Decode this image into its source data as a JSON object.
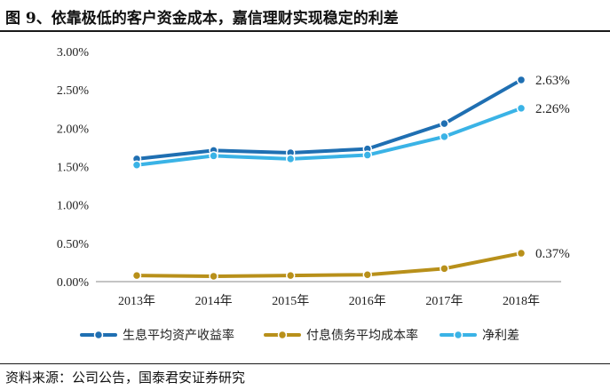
{
  "header": {
    "title": "图 9、依靠极低的客户资金成本，嘉信理财实现稳定的利差"
  },
  "footer": {
    "source": "资料来源：公司公告，国泰君安证券研究"
  },
  "chart_data": {
    "type": "line",
    "categories": [
      "2013年",
      "2014年",
      "2015年",
      "2016年",
      "2017年",
      "2018年"
    ],
    "ylim": [
      0,
      3.0
    ],
    "yticks": [
      "0.00%",
      "0.50%",
      "1.00%",
      "1.50%",
      "2.00%",
      "2.50%",
      "3.00%"
    ],
    "ytick_values": [
      0,
      0.5,
      1.0,
      1.5,
      2.0,
      2.5,
      3.0
    ],
    "grid": false,
    "legend_position": "bottom",
    "series": [
      {
        "name": "生息平均资产收益率",
        "values": [
          1.6,
          1.71,
          1.68,
          1.73,
          2.06,
          2.63
        ],
        "color": "#1f6fb2",
        "end_label": "2.63%"
      },
      {
        "name": "付息债务平均成本率",
        "values": [
          0.08,
          0.07,
          0.08,
          0.09,
          0.17,
          0.37
        ],
        "color": "#b8901a",
        "end_label": "0.37%"
      },
      {
        "name": "净利差",
        "values": [
          1.52,
          1.64,
          1.6,
          1.65,
          1.89,
          2.26
        ],
        "color": "#3ab3e6",
        "end_label": "2.26%"
      }
    ]
  }
}
